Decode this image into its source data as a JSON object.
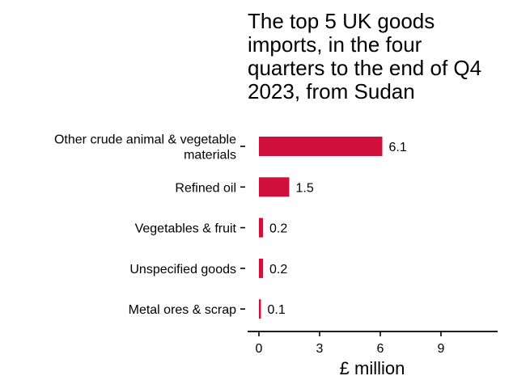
{
  "chart_data": {
    "type": "bar",
    "orientation": "horizontal",
    "title": "The top 5 UK goods\nimports, in the four\nquarters to the end of Q4\n2023, from Sudan",
    "categories": [
      [
        "Other crude animal & vegetable",
        "materials"
      ],
      [
        "Refined oil"
      ],
      [
        "Vegetables & fruit"
      ],
      [
        "Unspecified goods"
      ],
      [
        "Metal ores & scrap"
      ]
    ],
    "values": [
      6.1,
      1.5,
      0.2,
      0.2,
      0.1
    ],
    "data_labels": [
      "6.1",
      "1.5",
      "0.2",
      "0.2",
      "0.1"
    ],
    "xlabel": "£ million",
    "ylabel": "",
    "xlim": [
      0,
      11.8
    ],
    "xticks": [
      0,
      3,
      6,
      9
    ],
    "xtick_labels": [
      "0",
      "3",
      "6",
      "9"
    ],
    "grid": false,
    "legend": "none",
    "bar_color": "#d0103a"
  }
}
